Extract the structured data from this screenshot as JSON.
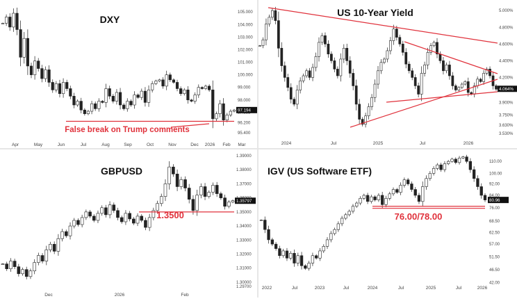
{
  "colors": {
    "candle": "#333333",
    "annotation": "#e0313b",
    "price_tag": "#111111"
  },
  "chart_data": [
    {
      "type": "line",
      "title": "DXY",
      "x_ticks": [
        "Apr",
        "May",
        "Jun",
        "Jul",
        "Aug",
        "Sep",
        "Oct",
        "Nov",
        "Dec",
        "2026",
        "Feb",
        "Mar"
      ],
      "y_ticks": [
        "105.000",
        "104.000",
        "103.000",
        "102.000",
        "101.000",
        "100.000",
        "99.000",
        "98.000",
        "97.000",
        "96.200",
        "95.400"
      ],
      "ylim": [
        95.0,
        105.4
      ],
      "last_price": "97.194",
      "annotation": "False break on Trump comments",
      "support_level": 96.3,
      "series": [
        {
          "values": [
            104.1,
            104.6,
            103.8,
            104.9,
            103.6,
            101.4,
            102.9,
            100.7,
            100.0,
            101.1,
            100.5,
            99.7,
            100.4,
            99.4,
            98.8,
            99.3,
            98.5,
            99.4,
            98.9,
            98.3,
            97.6,
            97.9,
            97.2,
            96.9,
            97.1,
            97.7,
            97.3,
            97.9,
            97.8,
            98.9,
            98.3,
            97.9,
            98.6,
            97.6,
            97.3,
            97.9,
            97.6,
            98.4,
            98.2,
            98.7,
            97.8,
            98.8,
            99.3,
            99.5,
            99.6,
            99.1,
            100.0,
            99.6,
            99.4,
            98.9,
            98.5,
            98.8,
            98.0,
            97.9,
            98.4,
            99.0,
            98.9,
            99.1,
            98.8,
            96.5,
            96.9,
            97.7,
            96.4,
            96.8,
            97.1,
            97.2
          ]
        }
      ]
    },
    {
      "type": "line",
      "title": "US 10-Year Yield",
      "x_ticks": [
        "2024",
        "Jul",
        "2025",
        "Jul",
        "2026"
      ],
      "y_ticks": [
        "5.000%",
        "4.800%",
        "4.600%",
        "4.400%",
        "4.200%",
        "3.900%",
        "3.750%",
        "3.630%",
        "3.530%"
      ],
      "ylim": [
        3.48,
        5.06
      ],
      "last_price": "4.064%",
      "series": [
        {
          "values": [
            4.58,
            4.65,
            4.84,
            4.92,
            5.0,
            4.88,
            4.55,
            4.34,
            4.2,
            4.08,
            3.94,
            3.88,
            4.05,
            4.16,
            4.22,
            4.28,
            4.2,
            4.32,
            4.45,
            4.62,
            4.7,
            4.6,
            4.48,
            4.4,
            4.3,
            4.22,
            4.42,
            4.55,
            4.4,
            4.25,
            4.1,
            3.88,
            3.7,
            3.64,
            3.74,
            3.85,
            3.96,
            4.12,
            4.28,
            4.38,
            4.42,
            4.52,
            4.64,
            4.78,
            4.68,
            4.6,
            4.5,
            4.36,
            4.28,
            4.2,
            4.1,
            4.0,
            4.25,
            4.35,
            4.5,
            4.58,
            4.62,
            4.48,
            4.4,
            4.28,
            4.35,
            4.22,
            4.1,
            4.05,
            4.08,
            4.12,
            4.15,
            4.02,
            4.0,
            4.1,
            4.18,
            4.15,
            4.25,
            4.3,
            4.22,
            4.1,
            4.06
          ]
        }
      ]
    },
    {
      "type": "line",
      "title": "GBPUSD",
      "x_ticks": [
        "Dec",
        "2026",
        "Feb"
      ],
      "y_ticks": [
        "1.39000",
        "1.38000",
        "1.37000",
        "1.36000",
        "1.35000",
        "1.34000",
        "1.33000",
        "1.32000",
        "1.31000",
        "1.30000",
        "1.29700"
      ],
      "ylim": [
        1.2955,
        1.3915
      ],
      "last_price": "1.35797",
      "annotation": "1.3500",
      "support_level": 1.35,
      "series": [
        {
          "values": [
            1.313,
            1.3095,
            1.315,
            1.311,
            1.306,
            1.309,
            1.304,
            1.308,
            1.314,
            1.319,
            1.315,
            1.323,
            1.327,
            1.322,
            1.331,
            1.336,
            1.333,
            1.34,
            1.344,
            1.341,
            1.346,
            1.35,
            1.347,
            1.344,
            1.349,
            1.353,
            1.348,
            1.355,
            1.351,
            1.346,
            1.343,
            1.349,
            1.345,
            1.342,
            1.347,
            1.344,
            1.339,
            1.346,
            1.351,
            1.356,
            1.361,
            1.37,
            1.382,
            1.377,
            1.368,
            1.373,
            1.367,
            1.359,
            1.351,
            1.362,
            1.368,
            1.361,
            1.364,
            1.369,
            1.363,
            1.36,
            1.354,
            1.357,
            1.358
          ]
        }
      ]
    },
    {
      "type": "line",
      "title": "IGV (US Software ETF)",
      "x_ticks": [
        "2022",
        "Jul",
        "2023",
        "Jul",
        "2024",
        "Jul",
        "2025",
        "Jul",
        "2026"
      ],
      "y_ticks": [
        "110.00",
        "100.00",
        "92.00",
        "84.00",
        "76.00",
        "68.50",
        "62.50",
        "57.00",
        "51.50",
        "46.50",
        "42.00"
      ],
      "log_scale": true,
      "ylim": [
        40.5,
        117.0
      ],
      "last_price": "80.96",
      "annotation": "76.00/78.00",
      "support_level": 77.0,
      "series": [
        {
          "values": [
            69,
            64,
            59,
            57,
            55,
            52,
            54,
            51,
            53,
            49,
            52,
            48,
            47,
            49,
            52,
            51,
            54,
            56,
            59,
            62,
            64,
            67,
            70,
            72,
            74,
            77,
            79,
            82,
            84,
            80,
            83,
            81,
            84,
            78,
            82,
            85,
            88,
            86,
            91,
            95,
            92,
            88,
            84,
            80,
            90,
            96,
            100,
            104,
            107,
            103,
            108,
            110,
            112,
            109,
            113,
            114,
            110,
            103,
            96,
            90,
            84,
            80.96
          ]
        }
      ]
    }
  ]
}
